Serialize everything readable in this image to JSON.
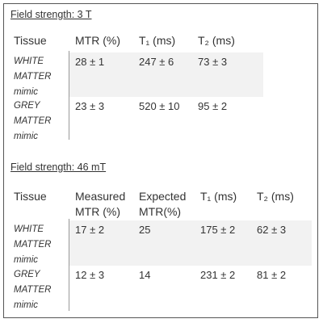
{
  "tables": [
    {
      "title": "Field strength: 3 T",
      "header": [
        "Tissue",
        "MTR (%)",
        "T₁ (ms)",
        "T₂ (ms)"
      ],
      "rows": [
        [
          "WHITE MATTER mimic",
          "28 ± 1",
          "247 ± 6",
          "73 ± 3"
        ],
        [
          "GREY MATTER mimic",
          "23 ± 3",
          "520 ± 10",
          "95 ± 2"
        ]
      ]
    },
    {
      "title": "Field strength: 46 mT",
      "header": [
        "Tissue",
        "Measured MTR (%)",
        "Expected MTR(%)",
        "T₁ (ms)",
        "T₂ (ms)"
      ],
      "rows": [
        [
          "WHITE MATTER mimic",
          "17 ± 2",
          "25",
          "175 ± 2",
          "62 ± 3"
        ],
        [
          "GREY MATTER mimic",
          "12 ± 3",
          "14",
          "231 ± 2",
          "81 ± 2"
        ]
      ]
    }
  ]
}
